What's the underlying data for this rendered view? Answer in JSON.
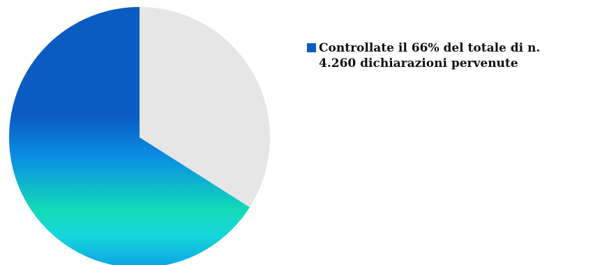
{
  "chart_data": {
    "type": "pie",
    "title": "",
    "slices": [
      {
        "label": "Controllate il  66% del totale di n.\n4.260 dichiarazioni pervenute",
        "value": 66,
        "color": "#0a5cc2"
      },
      {
        "label": "",
        "value": 34,
        "color": "#e6e6e6"
      }
    ],
    "legend_position": "top-right",
    "gradient_colors": [
      "#0a5cc2",
      "#0a5cc2",
      "#0b90e4",
      "#12dbb7",
      "#17d6dc",
      "#0ba2e6"
    ]
  }
}
